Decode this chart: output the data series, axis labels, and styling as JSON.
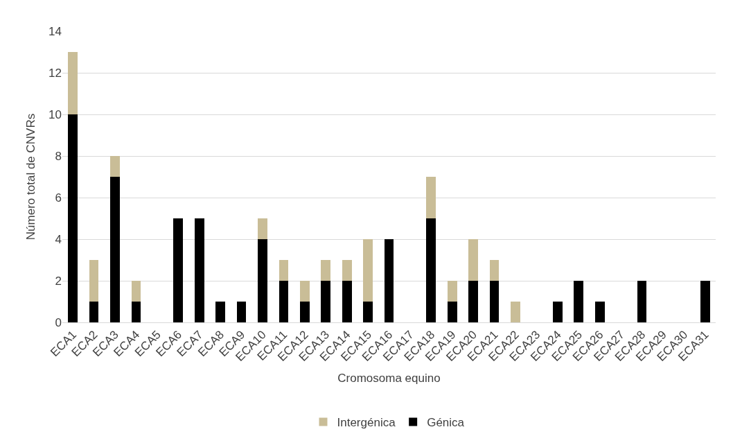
{
  "chart_data": {
    "type": "bar",
    "stacked": true,
    "xlabel": "Cromosoma equino",
    "ylabel": "Número total de CNVRs",
    "categories": [
      "ECA1",
      "ECA2",
      "ECA3",
      "ECA4",
      "ECA5",
      "ECA6",
      "ECA7",
      "ECA8",
      "ECA9",
      "ECA10",
      "ECA11",
      "ECA12",
      "ECA13",
      "ECA14",
      "ECA15",
      "ECA16",
      "ECA17",
      "ECA18",
      "ECA19",
      "ECA20",
      "ECA21",
      "ECA22",
      "ECA23",
      "ECA24",
      "ECA25",
      "ECA26",
      "ECA27",
      "ECA28",
      "ECA29",
      "ECA30",
      "ECA31"
    ],
    "series": [
      {
        "name": "Génica",
        "color": "#000000",
        "values": [
          10,
          1,
          7,
          1,
          0,
          5,
          5,
          1,
          1,
          4,
          2,
          1,
          2,
          2,
          1,
          4,
          0,
          5,
          1,
          2,
          2,
          0,
          0,
          1,
          2,
          1,
          0,
          2,
          0,
          0,
          2
        ]
      },
      {
        "name": "Intergénica",
        "color": "#c9bd97",
        "values": [
          3,
          2,
          1,
          1,
          0,
          0,
          0,
          0,
          0,
          1,
          1,
          1,
          1,
          1,
          3,
          0,
          0,
          2,
          1,
          2,
          1,
          1,
          0,
          0,
          0,
          0,
          0,
          0,
          0,
          0,
          0
        ]
      }
    ],
    "ylim": [
      0,
      14
    ],
    "yticks": [
      0,
      2,
      4,
      6,
      8,
      10,
      12,
      14
    ],
    "grid": "y",
    "legend": "bottom"
  }
}
